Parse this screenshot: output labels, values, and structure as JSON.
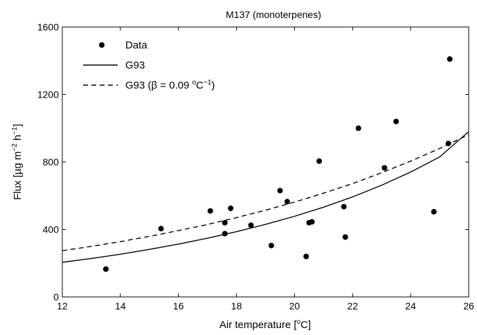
{
  "chart_data": {
    "type": "scatter",
    "title": "M137 (monoterpenes)",
    "xlabel": {
      "main": "Air temperature [",
      "sup": "o",
      "tail": "C]"
    },
    "ylabel": {
      "p1": "Flux [µg m",
      "sup1": "−2",
      "p2": " h",
      "sup2": "−1",
      "p3": "]"
    },
    "xlim": [
      12,
      26
    ],
    "ylim": [
      0,
      1600
    ],
    "xticks": [
      12,
      14,
      16,
      18,
      20,
      22,
      24,
      26
    ],
    "yticks": [
      0,
      400,
      800,
      1200,
      1600
    ],
    "grid": false,
    "legend_position": "top-left",
    "series": [
      {
        "name": "Data",
        "kind": "points",
        "x": [
          13.5,
          15.4,
          17.1,
          17.6,
          17.6,
          17.8,
          18.5,
          19.2,
          19.5,
          19.75,
          20.4,
          20.5,
          20.6,
          20.85,
          21.7,
          21.75,
          22.2,
          23.1,
          23.5,
          24.8,
          25.3,
          25.35
        ],
        "y": [
          165,
          405,
          510,
          375,
          440,
          525,
          425,
          305,
          630,
          565,
          240,
          440,
          445,
          805,
          535,
          355,
          1000,
          765,
          1040,
          505,
          910,
          1410
        ]
      },
      {
        "name": "G93",
        "kind": "line",
        "style": "solid",
        "x": [
          12,
          13,
          14,
          15,
          16,
          17,
          18,
          19,
          20,
          21,
          22,
          23,
          24,
          25,
          26
        ],
        "y": [
          205,
          228,
          253,
          282,
          313,
          348,
          387,
          430,
          478,
          532,
          593,
          662,
          740,
          830,
          980
        ]
      },
      {
        "name": "G93 (β = 0.09 ",
        "name_sup1": "o",
        "name_mid": "C",
        "name_sup2": "−1",
        "name_tail": ")",
        "kind": "line",
        "style": "dashed",
        "x": [
          12,
          13,
          14,
          15,
          16,
          17,
          18,
          19,
          20,
          21,
          22,
          23,
          24,
          25,
          26
        ],
        "y": [
          274,
          300,
          328,
          359,
          393,
          429,
          470,
          514,
          562,
          615,
          672,
          736,
          805,
          880,
          962
        ]
      }
    ]
  }
}
